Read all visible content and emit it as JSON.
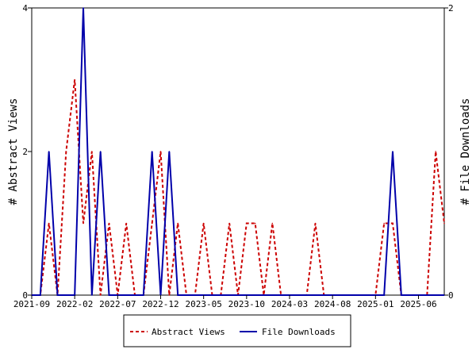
{
  "chart_data": {
    "type": "line",
    "x_categories": [
      "2021-09",
      "2021-10",
      "2021-11",
      "2021-12",
      "2022-01",
      "2022-02",
      "2022-03",
      "2022-04",
      "2022-05",
      "2022-06",
      "2022-07",
      "2022-08",
      "2022-09",
      "2022-10",
      "2022-11",
      "2022-12",
      "2023-01",
      "2023-02",
      "2023-03",
      "2023-04",
      "2023-05",
      "2023-06",
      "2023-07",
      "2023-08",
      "2023-09",
      "2023-10",
      "2023-11",
      "2023-12",
      "2024-01",
      "2024-02",
      "2024-03",
      "2024-04",
      "2024-05",
      "2024-06",
      "2024-07",
      "2024-08",
      "2024-09",
      "2024-10",
      "2024-11",
      "2024-12",
      "2025-01",
      "2025-02",
      "2025-03",
      "2025-04",
      "2025-05",
      "2025-06",
      "2025-07",
      "2025-08",
      "2025-09"
    ],
    "x_tick_labels": [
      "2021-09",
      "2022-02",
      "2022-07",
      "2022-12",
      "2023-05",
      "2023-10",
      "2024-03",
      "2024-08",
      "2025-01",
      "2025-06"
    ],
    "y_left_label": "# Abstract Views",
    "y_right_label": "# File Downloads",
    "y_left_ticks": [
      "0",
      "2",
      "4"
    ],
    "y_right_ticks": [
      "0",
      "2"
    ],
    "y_left_range": [
      0,
      4
    ],
    "y_right_range": [
      0,
      2
    ],
    "series": [
      {
        "name": "Abstract Views",
        "axis": "left",
        "color": "#cc0000",
        "style": "dashed",
        "values": [
          0,
          0,
          1,
          0,
          2,
          3,
          1,
          2,
          0,
          1,
          0,
          1,
          0,
          0,
          1,
          2,
          0,
          1,
          0,
          0,
          1,
          0,
          0,
          1,
          0,
          1,
          1,
          0,
          1,
          0,
          0,
          0,
          0,
          1,
          0,
          0,
          0,
          0,
          0,
          0,
          0,
          1,
          1,
          0,
          0,
          0,
          0,
          2,
          1
        ]
      },
      {
        "name": "File Downloads",
        "axis": "right",
        "color": "#0000aa",
        "style": "solid",
        "values": [
          0,
          0,
          1,
          0,
          0,
          0,
          2,
          0,
          1,
          0,
          0,
          0,
          0,
          0,
          1,
          0,
          1,
          0,
          0,
          0,
          0,
          0,
          0,
          0,
          0,
          0,
          0,
          0,
          0,
          0,
          0,
          0,
          0,
          0,
          0,
          0,
          0,
          0,
          0,
          0,
          0,
          0,
          1,
          0,
          0,
          0,
          0,
          0,
          0
        ]
      }
    ],
    "legend_position": "bottom-center"
  }
}
